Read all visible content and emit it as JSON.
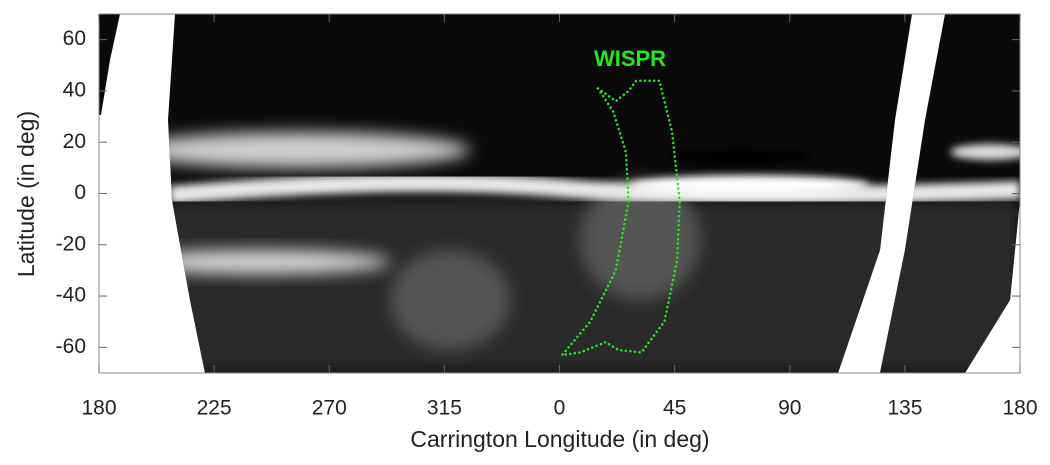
{
  "chart_data": {
    "type": "image",
    "xlabel": "Carrington Longitude (in deg)",
    "ylabel": "Latitude (in deg)",
    "xlim": [
      180,
      540
    ],
    "ylim": [
      -70,
      70
    ],
    "xticks": [
      180,
      225,
      270,
      315,
      {
        "value": 360,
        "label": "0"
      },
      {
        "value": 405,
        "label": "45"
      },
      {
        "value": 450,
        "label": "90"
      },
      {
        "value": 495,
        "label": "135"
      },
      {
        "value": 540,
        "label": "180"
      }
    ],
    "yticks": [
      -60,
      -40,
      -20,
      0,
      20,
      40,
      60
    ],
    "series": [
      {
        "name": "WISPR",
        "color": "#22e822",
        "x": [
          375,
          382,
          387,
          390,
          399,
          404,
          407,
          406,
          401,
          392,
          383,
          378,
          368,
          361,
          372,
          382,
          387,
          386,
          381,
          375
        ],
        "values": [
          41,
          36,
          40,
          44,
          44,
          24,
          -3,
          -26,
          -50,
          -62,
          -61,
          -58,
          -62,
          -63,
          -50,
          -30,
          -3,
          16,
          32,
          41
        ]
      }
    ]
  }
}
